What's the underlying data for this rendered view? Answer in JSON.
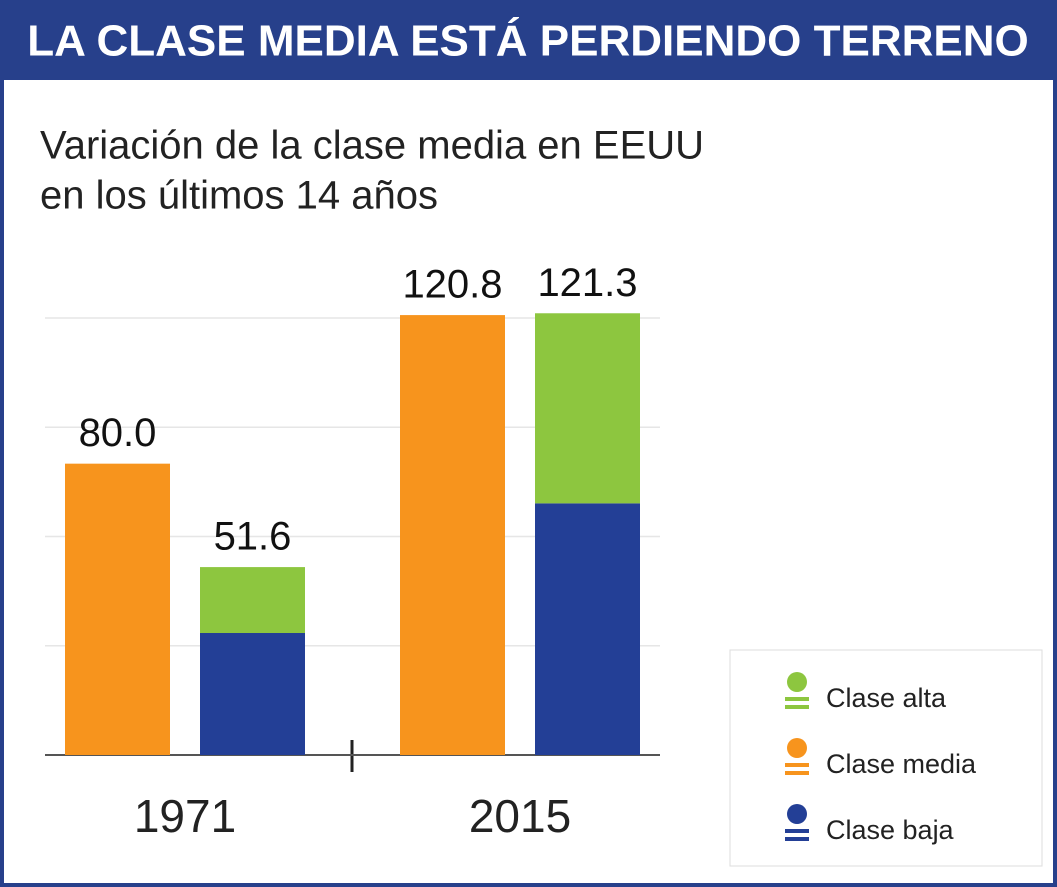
{
  "chart_data": {
    "type": "bar",
    "title": "LA CLASE MEDIA ESTÁ PERDIENDO TERRENO",
    "subtitle": [
      "Variación de la clase media en EEUU",
      "en los últimos 14 años"
    ],
    "categories": [
      "1971",
      "2015"
    ],
    "series": [
      {
        "name": "Clase alta",
        "color": "#8dc63f",
        "values": [
          18.1,
          52.2
        ]
      },
      {
        "name": "Clase media",
        "color": "#f7941d",
        "values": [
          80,
          120.8
        ],
        "value_labels": [
          "80.0",
          "120.8"
        ]
      },
      {
        "name": "Clase baja",
        "color": "#233f96",
        "values": [
          33.5,
          69.1
        ]
      }
    ],
    "totals": [
      51.6,
      121.3
    ],
    "ylim": [
      0,
      120
    ],
    "yticks": [
      0,
      30,
      60,
      90,
      120
    ],
    "grid": true
  }
}
